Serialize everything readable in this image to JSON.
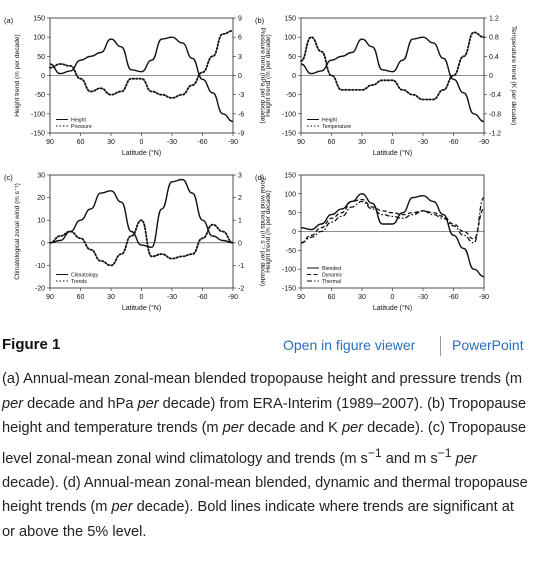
{
  "panels": [
    {
      "tag": "(a)",
      "left_axis": {
        "label": "Height trend (m per decade)",
        "ticks": [
          "150",
          "100",
          "50",
          "0",
          "-50",
          "-100",
          "-150"
        ]
      },
      "right_axis": {
        "label": "Pressure trend (hPa per decade)",
        "ticks": [
          "9",
          "6",
          "3",
          "0",
          "-3",
          "-6",
          "-9"
        ]
      },
      "x_ticks": [
        "90",
        "60",
        "30",
        "0",
        "-30",
        "-60",
        "-90"
      ],
      "x_label": "Latitude (°N)",
      "legend": [
        {
          "label": "Height",
          "style": "solid"
        },
        {
          "label": "Pressure",
          "style": "dotted"
        }
      ]
    },
    {
      "tag": "(b)",
      "left_axis": {
        "label": "Height trend (m per decade)",
        "ticks": [
          "150",
          "100",
          "50",
          "0",
          "-50",
          "-100",
          "-150"
        ]
      },
      "right_axis": {
        "label": "Temperature trend (K per decade)",
        "ticks": [
          "1.2",
          "0.8",
          "0.4",
          "0",
          "-0.4",
          "-0.8",
          "-1.2"
        ]
      },
      "x_ticks": [
        "90",
        "60",
        "30",
        "0",
        "-30",
        "-60",
        "-90"
      ],
      "x_label": "Latitude (°N)",
      "legend": [
        {
          "label": "Height",
          "style": "solid"
        },
        {
          "label": "Temperature",
          "style": "dotted"
        }
      ]
    },
    {
      "tag": "(c)",
      "left_axis": {
        "label": "Climatological zonal wind (m s⁻¹)",
        "ticks": [
          "30",
          "20",
          "10",
          "0",
          "-10",
          "-20"
        ]
      },
      "right_axis": {
        "label": "Zonal wind trends (m s⁻¹ per decade)",
        "ticks": [
          "3",
          "2",
          "1",
          "0",
          "-1",
          "-2"
        ]
      },
      "x_ticks": [
        "90",
        "60",
        "30",
        "0",
        "-30",
        "-60",
        "-90"
      ],
      "x_label": "Latitude (°N)",
      "legend": [
        {
          "label": "Climatology",
          "style": "solid"
        },
        {
          "label": "Trends",
          "style": "dotted"
        }
      ]
    },
    {
      "tag": "(d)",
      "left_axis": {
        "label": "Height trend (m per decade)",
        "ticks": [
          "150",
          "100",
          "50",
          "0",
          "-50",
          "-100",
          "-150"
        ]
      },
      "right_axis": null,
      "x_ticks": [
        "90",
        "60",
        "30",
        "0",
        "-30",
        "-60",
        "-90"
      ],
      "x_label": "Latitude (°N)",
      "legend": [
        {
          "label": "Blended",
          "style": "solid"
        },
        {
          "label": "Dynamic",
          "style": "dashed"
        },
        {
          "label": "Thermal",
          "style": "dashdot"
        }
      ]
    }
  ],
  "chart_data": [
    {
      "type": "line",
      "x": [
        90,
        80,
        70,
        60,
        50,
        40,
        30,
        20,
        10,
        0,
        -10,
        -20,
        -30,
        -40,
        -50,
        -60,
        -70,
        -80,
        -90
      ],
      "ylim": [
        -150,
        150
      ],
      "y2lim": [
        -9,
        9
      ],
      "series": [
        {
          "name": "Height",
          "axis": "left",
          "style": "solid",
          "values": [
            30,
            5,
            12,
            40,
            50,
            60,
            95,
            75,
            15,
            10,
            40,
            95,
            100,
            85,
            45,
            -10,
            -45,
            -100,
            -120
          ]
        },
        {
          "name": "Pressure",
          "axis": "right",
          "style": "dotted",
          "values": [
            1.2,
            1.8,
            1.5,
            -0.5,
            -2.5,
            -2.0,
            -3.0,
            -2.5,
            -0.5,
            -0.5,
            -2.5,
            -3.0,
            -3.5,
            -3.0,
            -1.5,
            0.5,
            3.0,
            6.5,
            7.0
          ]
        }
      ]
    },
    {
      "type": "line",
      "x": [
        90,
        80,
        70,
        60,
        50,
        40,
        30,
        20,
        10,
        0,
        -10,
        -20,
        -30,
        -40,
        -50,
        -60,
        -70,
        -80,
        -90
      ],
      "ylim": [
        -150,
        150
      ],
      "y2lim": [
        -1.2,
        1.2
      ],
      "series": [
        {
          "name": "Height",
          "axis": "left",
          "style": "solid",
          "values": [
            30,
            5,
            12,
            40,
            50,
            60,
            95,
            75,
            15,
            10,
            40,
            95,
            100,
            85,
            45,
            -10,
            -45,
            -100,
            -120
          ]
        },
        {
          "name": "Temperature",
          "axis": "right",
          "style": "dotted",
          "values": [
            0.3,
            0.8,
            0.5,
            0.0,
            -0.3,
            -0.3,
            -0.3,
            -0.2,
            -0.1,
            -0.1,
            -0.3,
            -0.4,
            -0.5,
            -0.5,
            -0.3,
            0.0,
            0.4,
            0.9,
            0.8
          ]
        }
      ]
    },
    {
      "type": "line",
      "x": [
        90,
        80,
        70,
        60,
        50,
        40,
        30,
        20,
        10,
        0,
        -10,
        -20,
        -30,
        -40,
        -50,
        -60,
        -70,
        -80,
        -90
      ],
      "ylim": [
        -20,
        30
      ],
      "y2lim": [
        -2,
        3
      ],
      "series": [
        {
          "name": "Climatology",
          "axis": "left",
          "style": "solid",
          "values": [
            0,
            1,
            5,
            10,
            15,
            22,
            23,
            18,
            5,
            -1,
            -2,
            15,
            27,
            28,
            22,
            10,
            3,
            1,
            0
          ]
        },
        {
          "name": "Trends",
          "axis": "right",
          "style": "dotted",
          "values": [
            0,
            0.3,
            0.5,
            0.2,
            -0.3,
            -0.8,
            -1.0,
            -0.5,
            0.3,
            1.0,
            -0.6,
            -0.5,
            -0.7,
            -0.6,
            -0.5,
            0.2,
            0.8,
            0.5,
            0.0
          ]
        }
      ]
    },
    {
      "type": "line",
      "x": [
        90,
        80,
        70,
        60,
        50,
        40,
        30,
        20,
        10,
        0,
        -10,
        -20,
        -30,
        -40,
        -50,
        -60,
        -70,
        -80,
        -90
      ],
      "ylim": [
        -150,
        150
      ],
      "series": [
        {
          "name": "Blended",
          "axis": "left",
          "style": "solid",
          "values": [
            10,
            5,
            20,
            45,
            60,
            80,
            100,
            75,
            20,
            20,
            50,
            90,
            95,
            80,
            45,
            -10,
            -45,
            -100,
            -120
          ]
        },
        {
          "name": "Dynamic",
          "axis": "left",
          "style": "dashed",
          "values": [
            -30,
            -10,
            10,
            35,
            50,
            80,
            85,
            65,
            55,
            50,
            45,
            50,
            55,
            50,
            40,
            20,
            0,
            -20,
            60
          ]
        },
        {
          "name": "Thermal",
          "axis": "left",
          "style": "dashdot",
          "values": [
            -30,
            -15,
            0,
            25,
            40,
            65,
            80,
            60,
            45,
            40,
            35,
            45,
            55,
            45,
            35,
            15,
            -10,
            -30,
            90
          ]
        }
      ]
    }
  ],
  "header": {
    "title": "Figure 1",
    "viewer_link": "Open in figure viewer",
    "ppt_link": "PowerPoint"
  },
  "caption": {
    "p1": "(a) Annual-mean zonal-mean blended tropopause height and pressure trends (m ",
    "p1i": "per",
    "p2": " decade and hPa ",
    "p2i": "per",
    "p3": " decade) from ERA-Interim (1989–2007). (b) Tropopause height and temperature trends (m ",
    "p3i": "per",
    "p4": " decade and K ",
    "p4i": "per",
    "p5": " decade). (c) Tropopause level zonal-mean zonal wind climatology and trends (m s",
    "p5sup": "−1",
    "p6": " and m s",
    "p6sup": "−1",
    "p6b": " ",
    "p6i": "per",
    "p7": " decade). (d) Annual-mean zonal-mean blended, dynamic and thermal tropopause height trends (m ",
    "p7i": "per",
    "p8": " decade). Bold lines indicate where trends are significant at or above the 5% level."
  }
}
